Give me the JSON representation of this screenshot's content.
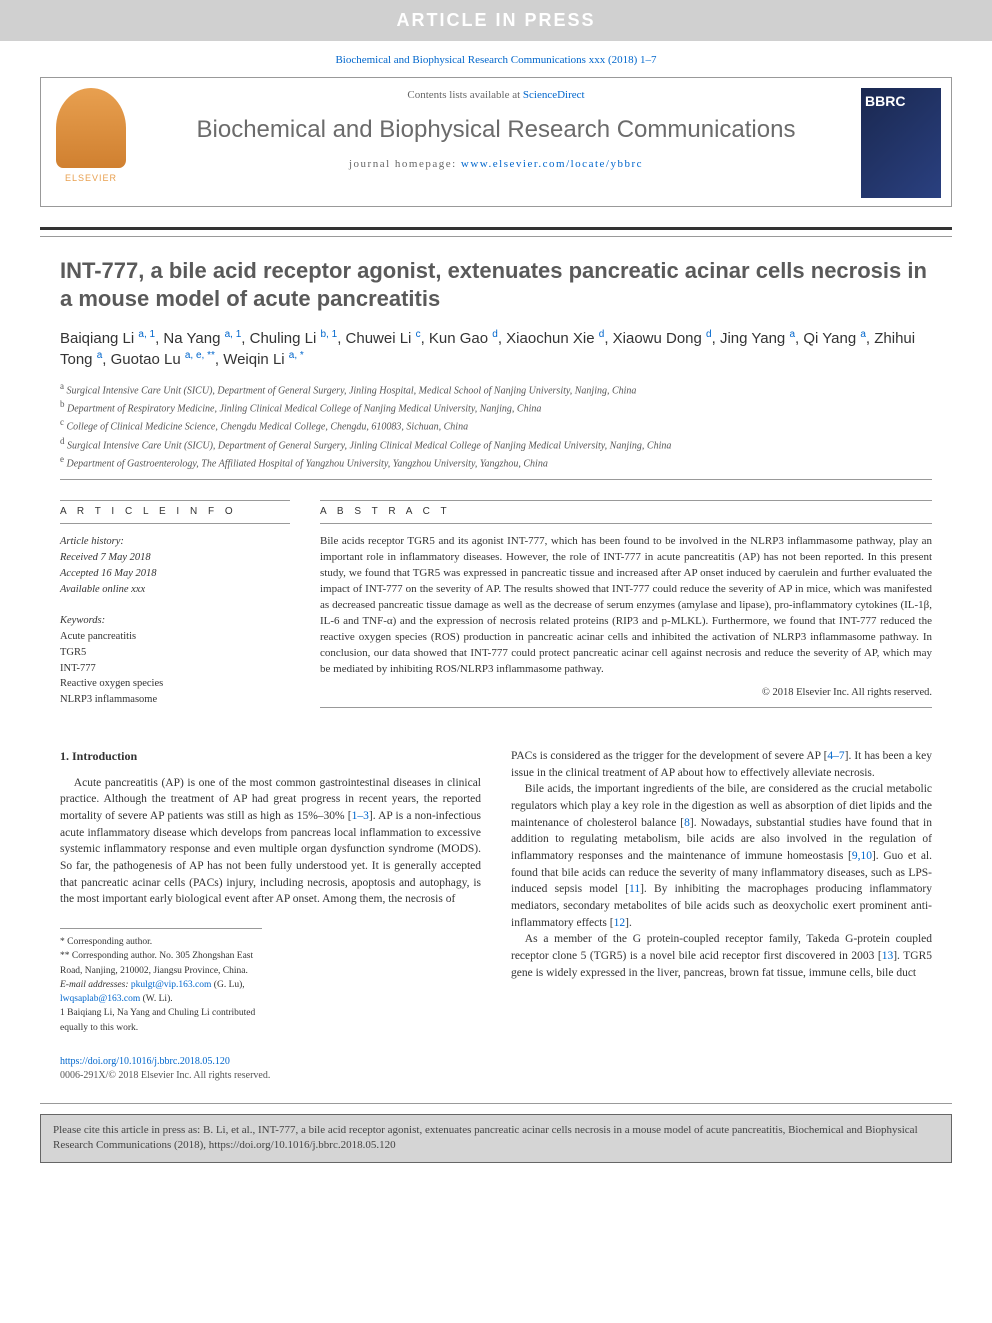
{
  "header": {
    "in_press_banner": "ARTICLE IN PRESS",
    "citation_line": "Biochemical and Biophysical Research Communications xxx (2018) 1–7",
    "contents_prefix": "Contents lists available at ",
    "contents_link": "ScienceDirect",
    "journal_name": "Biochemical and Biophysical Research Communications",
    "homepage_prefix": "journal homepage: ",
    "homepage_url": "www.elsevier.com/locate/ybbrc",
    "elsevier_label": "ELSEVIER",
    "cover_label": "BBRC"
  },
  "article": {
    "title": "INT-777, a bile acid receptor agonist, extenuates pancreatic acinar cells necrosis in a mouse model of acute pancreatitis",
    "authors_html": "Baiqiang Li <sup>a, 1</sup>, Na Yang <sup>a, 1</sup>, Chuling Li <sup>b, 1</sup>, Chuwei Li <sup>c</sup>, Kun Gao <sup>d</sup>, Xiaochun Xie <sup>d</sup>, Xiaowu Dong <sup>d</sup>, Jing Yang <sup>a</sup>, Qi Yang <sup>a</sup>, Zhihui Tong <sup>a</sup>, Guotao Lu <sup>a, e, **</sup>, Weiqin Li <sup>a, *</sup>",
    "affiliations": [
      "a Surgical Intensive Care Unit (SICU), Department of General Surgery, Jinling Hospital, Medical School of Nanjing University, Nanjing, China",
      "b Department of Respiratory Medicine, Jinling Clinical Medical College of Nanjing Medical University, Nanjing, China",
      "c College of Clinical Medicine Science, Chengdu Medical College, Chengdu, 610083, Sichuan, China",
      "d Surgical Intensive Care Unit (SICU), Department of General Surgery, Jinling Clinical Medical College of Nanjing Medical University, Nanjing, China",
      "e Department of Gastroenterology, The Affiliated Hospital of Yangzhou University, Yangzhou University, Yangzhou, China"
    ]
  },
  "info": {
    "heading": "A R T I C L E   I N F O",
    "history_label": "Article history:",
    "received": "Received 7 May 2018",
    "accepted": "Accepted 16 May 2018",
    "online": "Available online xxx",
    "keywords_label": "Keywords:",
    "keywords": [
      "Acute pancreatitis",
      "TGR5",
      "INT-777",
      "Reactive oxygen species",
      "NLRP3 inflammasome"
    ]
  },
  "abstract": {
    "heading": "A B S T R A C T",
    "text": "Bile acids receptor TGR5 and its agonist INT-777, which has been found to be involved in the NLRP3 inflammasome pathway, play an important role in inflammatory diseases. However, the role of INT-777 in acute pancreatitis (AP) has not been reported. In this present study, we found that TGR5 was expressed in pancreatic tissue and increased after AP onset induced by caerulein and further evaluated the impact of INT-777 on the severity of AP. The results showed that INT-777 could reduce the severity of AP in mice, which was manifested as decreased pancreatic tissue damage as well as the decrease of serum enzymes (amylase and lipase), pro-inflammatory cytokines (IL-1β, IL-6 and TNF-α) and the expression of necrosis related proteins (RIP3 and p-MLKL). Furthermore, we found that INT-777 reduced the reactive oxygen species (ROS) production in pancreatic acinar cells and inhibited the activation of NLRP3 inflammasome pathway. In conclusion, our data showed that INT-777 could protect pancreatic acinar cell against necrosis and reduce the severity of AP, which may be mediated by inhibiting ROS/NLRP3 inflammasome pathway.",
    "copyright": "© 2018 Elsevier Inc. All rights reserved."
  },
  "body": {
    "intro_heading": "1. Introduction",
    "col1_p1": "Acute pancreatitis (AP) is one of the most common gastrointestinal diseases in clinical practice. Although the treatment of AP had great progress in recent years, the reported mortality of severe AP patients was still as high as 15%–30% [1–3]. AP is a non-infectious acute inflammatory disease which develops from pancreas local inflammation to excessive systemic inflammatory response and even multiple organ dysfunction syndrome (MODS). So far, the pathogenesis of AP has not been fully understood yet. It is generally accepted that pancreatic acinar cells (PACs) injury, including necrosis, apoptosis and autophagy, is the most important early biological event after AP onset. Among them, the necrosis of",
    "col2_p1": "PACs is considered as the trigger for the development of severe AP [4–7]. It has been a key issue in the clinical treatment of AP about how to effectively alleviate necrosis.",
    "col2_p2": "Bile acids, the important ingredients of the bile, are considered as the crucial metabolic regulators which play a key role in the digestion as well as absorption of diet lipids and the maintenance of cholesterol balance [8]. Nowadays, substantial studies have found that in addition to regulating metabolism, bile acids are also involved in the regulation of inflammatory responses and the maintenance of immune homeostasis [9,10]. Guo et al. found that bile acids can reduce the severity of many inflammatory diseases, such as LPS-induced sepsis model [11]. By inhibiting the macrophages producing inflammatory mediators, secondary metabolites of bile acids such as deoxycholic exert prominent anti-inflammatory effects [12].",
    "col2_p3": "As a member of the G protein-coupled receptor family, Takeda G-protein coupled receptor clone 5 (TGR5) is a novel bile acid receptor first discovered in 2003 [13]. TGR5 gene is widely expressed in the liver, pancreas, brown fat tissue, immune cells, bile duct"
  },
  "footnotes": {
    "corr1": "* Corresponding author.",
    "corr2": "** Corresponding author. No. 305 Zhongshan East Road, Nanjing, 210002, Jiangsu Province, China.",
    "email_label": "E-mail addresses: ",
    "email1": "pkulgt@vip.163.com",
    "email1_name": " (G. Lu), ",
    "email2": "lwqsaplab@163.com",
    "email2_name": " (W. Li).",
    "note1": "1 Baiqiang Li, Na Yang and Chuling Li contributed equally to this work."
  },
  "footer": {
    "doi": "https://doi.org/10.1016/j.bbrc.2018.05.120",
    "copyright": "0006-291X/© 2018 Elsevier Inc. All rights reserved.",
    "cite_box": "Please cite this article in press as: B. Li, et al., INT-777, a bile acid receptor agonist, extenuates pancreatic acinar cells necrosis in a mouse model of acute pancreatitis, Biochemical and Biophysical Research Communications (2018), https://doi.org/10.1016/j.bbrc.2018.05.120"
  },
  "colors": {
    "link": "#0066cc",
    "banner_bg": "#d0d0d0",
    "heading_gray": "#5a5a5a"
  }
}
